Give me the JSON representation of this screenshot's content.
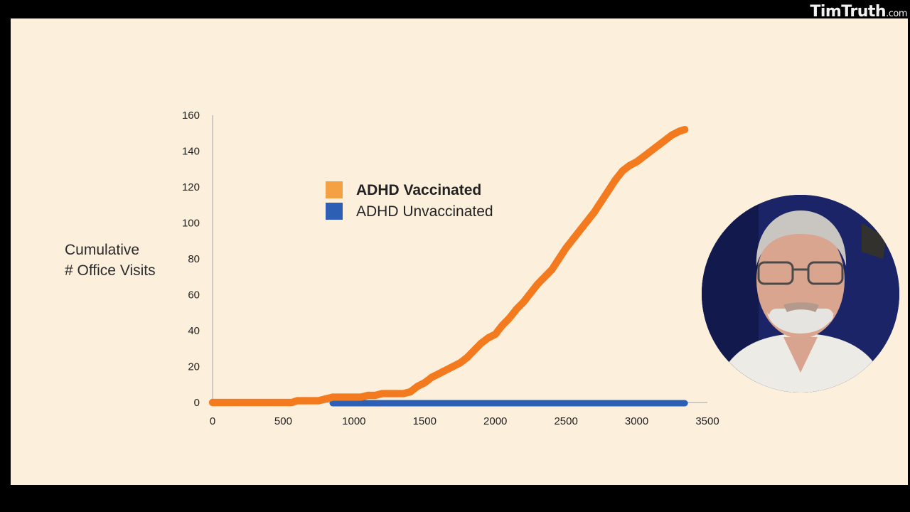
{
  "watermark": {
    "brand": "TimTruth",
    "suffix": ".com"
  },
  "ylabel_lines": [
    "Cumulative",
    "# Office Visits"
  ],
  "chart_data": {
    "type": "scatter",
    "ylabel": "Cumulative # Office Visits",
    "xlim": [
      0,
      3500
    ],
    "ylim": [
      0,
      160
    ],
    "xticks": [
      "0",
      "500",
      "1000",
      "1500",
      "2000",
      "2500",
      "3000",
      "3500"
    ],
    "yticks": [
      "0",
      "20",
      "40",
      "60",
      "80",
      "100",
      "120",
      "140",
      "160"
    ],
    "legend_position": "upper-left-center",
    "series": [
      {
        "name": "ADHD Vaccinated",
        "color": "#f47a1f",
        "legend_color": "#f4a143",
        "x": [
          0,
          100,
          200,
          300,
          400,
          500,
          560,
          600,
          650,
          700,
          750,
          800,
          850,
          900,
          950,
          1000,
          1050,
          1100,
          1150,
          1200,
          1250,
          1300,
          1350,
          1400,
          1450,
          1500,
          1550,
          1600,
          1650,
          1700,
          1750,
          1800,
          1850,
          1900,
          1950,
          2000,
          2050,
          2100,
          2150,
          2200,
          2250,
          2300,
          2350,
          2400,
          2450,
          2500,
          2550,
          2600,
          2650,
          2700,
          2750,
          2800,
          2850,
          2900,
          2950,
          3000,
          3050,
          3100,
          3150,
          3200,
          3250,
          3300,
          3340
        ],
        "y": [
          0,
          0,
          0,
          0,
          0,
          0,
          0,
          1,
          1,
          1,
          1,
          2,
          3,
          3,
          3,
          3,
          3,
          4,
          4,
          5,
          5,
          5,
          5,
          6,
          9,
          11,
          14,
          16,
          18,
          20,
          22,
          25,
          29,
          33,
          36,
          38,
          43,
          47,
          52,
          56,
          61,
          66,
          70,
          74,
          80,
          86,
          91,
          96,
          101,
          106,
          112,
          118,
          124,
          129,
          132,
          134,
          137,
          140,
          143,
          146,
          149,
          151,
          152
        ]
      },
      {
        "name": "ADHD Unvaccinated",
        "color": "#2d5fb5",
        "legend_color": "#2d5fb5",
        "x": [
          850,
          3340
        ],
        "y": [
          0,
          0
        ],
        "style": "baseline"
      }
    ]
  },
  "legend": [
    {
      "label": "ADHD Vaccinated",
      "color": "#f4a143",
      "bold": true
    },
    {
      "label": "ADHD Unvaccinated",
      "color": "#2d5fb5",
      "bold": false
    }
  ]
}
